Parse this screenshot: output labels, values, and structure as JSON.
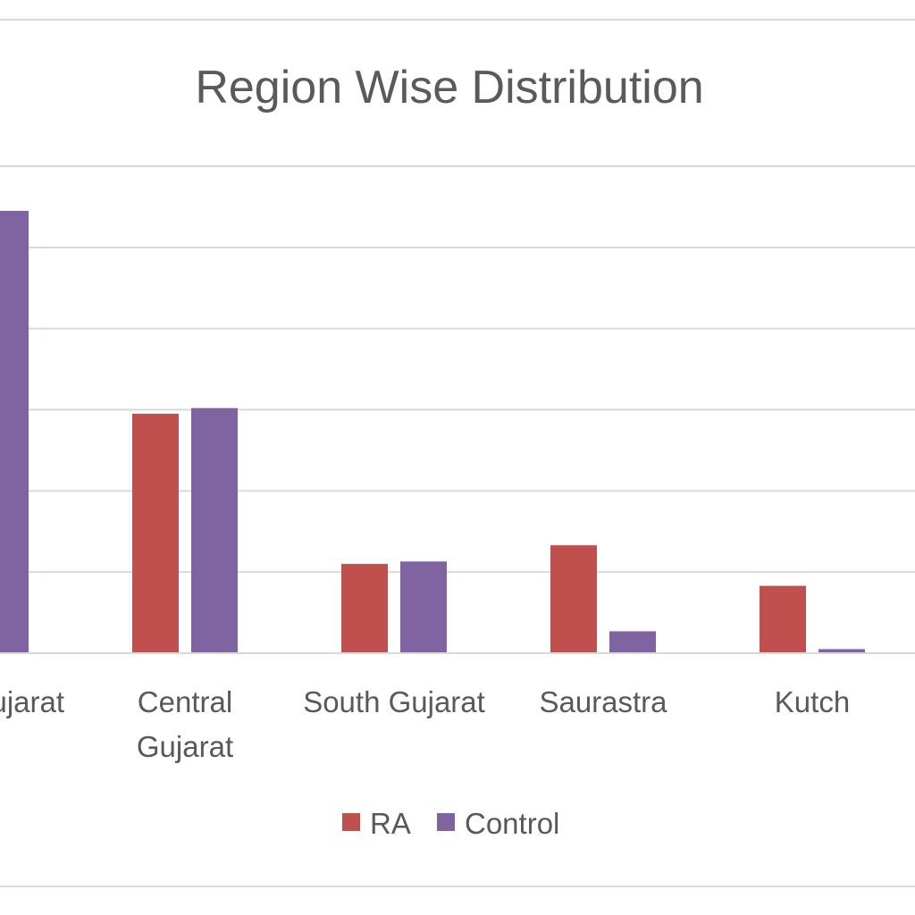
{
  "chart_data": {
    "type": "bar",
    "title": "Region Wise Distribution",
    "categories": [
      [
        "North Gujarat"
      ],
      [
        "Central",
        "Gujarat"
      ],
      [
        "South Gujarat"
      ],
      [
        "Saurastra"
      ],
      [
        "Kutch"
      ]
    ],
    "series": [
      {
        "name": "RA",
        "color": "#c0504d",
        "values": [
          null,
          29.5,
          11,
          13.3,
          8.3
        ]
      },
      {
        "name": "Control",
        "color": "#8064a2",
        "values": [
          54.5,
          30.2,
          11.3,
          2.7,
          0.5
        ]
      }
    ],
    "ylim": [
      0,
      60
    ],
    "y_ticks": [
      0,
      10,
      20,
      30,
      40,
      50,
      60
    ],
    "grid": true,
    "legend": "bottom"
  }
}
